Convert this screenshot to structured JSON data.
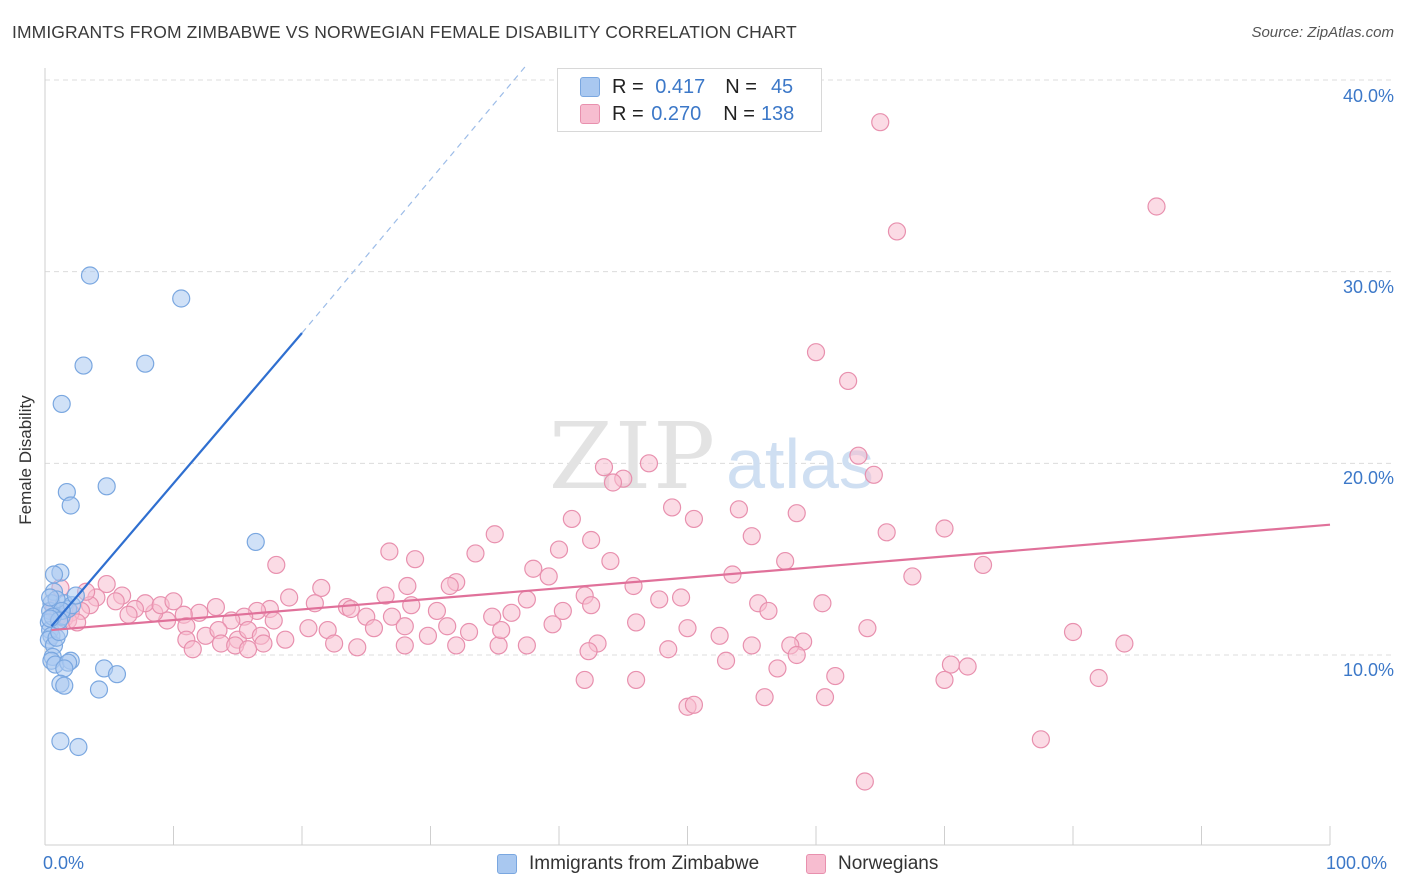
{
  "header": {
    "title": "IMMIGRANTS FROM ZIMBABWE VS NORWEGIAN FEMALE DISABILITY CORRELATION CHART",
    "source": "Source: ZipAtlas.com"
  },
  "watermark": {
    "zip": "ZIP",
    "atlas": "atlas"
  },
  "legend_stats": [
    {
      "r_label": "R =",
      "r_value": "0.417",
      "n_label": "N =",
      "n_value": "45",
      "color": "#a9c8f0",
      "border": "#7aa7e0"
    },
    {
      "r_label": "R =",
      "r_value": "0.270",
      "n_label": "N =",
      "n_value": "138",
      "color": "#f7bdd0",
      "border": "#e890ae"
    }
  ],
  "chart_data": {
    "type": "scatter",
    "title": "IMMIGRANTS FROM ZIMBABWE VS NORWEGIAN FEMALE DISABILITY CORRELATION CHART",
    "xlabel": "",
    "ylabel": "Female Disability",
    "xlim": [
      0,
      100
    ],
    "ylim": [
      0,
      41
    ],
    "x_tick_labels": [
      "0.0%",
      "100.0%"
    ],
    "y_ticks": [
      10,
      20,
      30,
      40
    ],
    "y_tick_labels": [
      "10.0%",
      "20.0%",
      "30.0%",
      "40.0%"
    ],
    "grid": true,
    "legend_position": "bottom",
    "series": [
      {
        "name": "Immigrants from Zimbabwe",
        "color": "#7aa7e0",
        "fill": "#a9c8f0",
        "trend": {
          "x": [
            0.5,
            20.0
          ],
          "y": [
            11.5,
            26.8
          ],
          "dashed_to": [
            37.5,
            40.8
          ]
        },
        "points": [
          [
            3.5,
            29.8
          ],
          [
            10.6,
            28.6
          ],
          [
            3.0,
            25.1
          ],
          [
            7.8,
            25.2
          ],
          [
            1.3,
            23.1
          ],
          [
            1.7,
            18.5
          ],
          [
            2.0,
            17.8
          ],
          [
            4.8,
            18.8
          ],
          [
            16.4,
            15.9
          ],
          [
            1.2,
            14.3
          ],
          [
            0.7,
            14.2
          ],
          [
            0.7,
            13.3
          ],
          [
            0.5,
            12.7
          ],
          [
            0.4,
            12.3
          ],
          [
            0.3,
            11.7
          ],
          [
            0.4,
            11.3
          ],
          [
            0.5,
            11.0
          ],
          [
            0.3,
            10.8
          ],
          [
            0.7,
            10.5
          ],
          [
            0.9,
            10.9
          ],
          [
            1.1,
            11.2
          ],
          [
            0.6,
            9.9
          ],
          [
            0.5,
            9.7
          ],
          [
            0.8,
            9.5
          ],
          [
            1.3,
            12.0
          ],
          [
            1.5,
            12.7
          ],
          [
            1.8,
            12.4
          ],
          [
            2.1,
            12.6
          ],
          [
            2.4,
            13.1
          ],
          [
            0.9,
            12.9
          ],
          [
            1.3,
            12.3
          ],
          [
            0.6,
            12.0
          ],
          [
            1.1,
            11.8
          ],
          [
            0.4,
            13.0
          ],
          [
            2.0,
            9.7
          ],
          [
            1.8,
            9.6
          ],
          [
            1.5,
            9.3
          ],
          [
            4.6,
            9.3
          ],
          [
            5.6,
            9.0
          ],
          [
            1.2,
            8.5
          ],
          [
            1.5,
            8.4
          ],
          [
            4.2,
            8.2
          ],
          [
            1.2,
            5.5
          ],
          [
            2.6,
            5.2
          ],
          [
            0.4,
            11.9
          ]
        ]
      },
      {
        "name": "Norwegians",
        "color": "#e890ae",
        "fill": "#f7bdd0",
        "trend": {
          "x": [
            0.5,
            100.0
          ],
          "y": [
            11.3,
            16.8
          ]
        },
        "points": [
          [
            65.0,
            37.8
          ],
          [
            86.5,
            33.4
          ],
          [
            66.3,
            32.1
          ],
          [
            60.0,
            25.8
          ],
          [
            62.5,
            24.3
          ],
          [
            63.3,
            20.4
          ],
          [
            64.5,
            19.4
          ],
          [
            47.0,
            20.0
          ],
          [
            43.5,
            19.8
          ],
          [
            45.0,
            19.2
          ],
          [
            44.2,
            19.0
          ],
          [
            54.0,
            17.6
          ],
          [
            48.8,
            17.7
          ],
          [
            58.5,
            17.4
          ],
          [
            50.5,
            17.1
          ],
          [
            41.0,
            17.1
          ],
          [
            70.0,
            16.6
          ],
          [
            65.5,
            16.4
          ],
          [
            55.0,
            16.2
          ],
          [
            35.0,
            16.3
          ],
          [
            42.5,
            16.0
          ],
          [
            26.8,
            15.4
          ],
          [
            28.8,
            15.0
          ],
          [
            33.5,
            15.3
          ],
          [
            40.0,
            15.5
          ],
          [
            44.0,
            14.9
          ],
          [
            57.6,
            14.9
          ],
          [
            73.0,
            14.7
          ],
          [
            53.5,
            14.2
          ],
          [
            67.5,
            14.1
          ],
          [
            38.0,
            14.5
          ],
          [
            39.2,
            14.1
          ],
          [
            32.0,
            13.8
          ],
          [
            31.5,
            13.6
          ],
          [
            28.2,
            13.6
          ],
          [
            18.0,
            14.7
          ],
          [
            21.5,
            13.5
          ],
          [
            26.5,
            13.1
          ],
          [
            45.8,
            13.6
          ],
          [
            42.0,
            13.1
          ],
          [
            37.5,
            12.9
          ],
          [
            49.5,
            13.0
          ],
          [
            55.5,
            12.7
          ],
          [
            60.5,
            12.7
          ],
          [
            56.3,
            12.3
          ],
          [
            47.8,
            12.9
          ],
          [
            42.5,
            12.6
          ],
          [
            40.3,
            12.3
          ],
          [
            36.3,
            12.2
          ],
          [
            34.8,
            12.0
          ],
          [
            30.5,
            12.3
          ],
          [
            28.5,
            12.6
          ],
          [
            27.0,
            12.0
          ],
          [
            25.0,
            12.0
          ],
          [
            23.5,
            12.5
          ],
          [
            21.0,
            12.7
          ],
          [
            19.0,
            13.0
          ],
          [
            17.5,
            12.4
          ],
          [
            16.5,
            12.3
          ],
          [
            15.5,
            12.0
          ],
          [
            14.5,
            11.8
          ],
          [
            13.3,
            12.5
          ],
          [
            12.0,
            12.2
          ],
          [
            10.8,
            12.1
          ],
          [
            9.5,
            11.8
          ],
          [
            8.5,
            12.2
          ],
          [
            7.8,
            12.7
          ],
          [
            7.0,
            12.4
          ],
          [
            6.5,
            12.1
          ],
          [
            6.0,
            13.1
          ],
          [
            5.5,
            12.8
          ],
          [
            4.8,
            13.7
          ],
          [
            4.0,
            13.0
          ],
          [
            3.5,
            12.6
          ],
          [
            2.8,
            12.3
          ],
          [
            2.0,
            12.2
          ],
          [
            1.5,
            11.9
          ],
          [
            1.0,
            12.0
          ],
          [
            0.7,
            12.4
          ],
          [
            1.2,
            13.5
          ],
          [
            1.8,
            11.8
          ],
          [
            2.5,
            11.7
          ],
          [
            3.2,
            13.3
          ],
          [
            9.0,
            12.6
          ],
          [
            10.0,
            12.8
          ],
          [
            11.0,
            11.5
          ],
          [
            12.5,
            11.0
          ],
          [
            13.5,
            11.3
          ],
          [
            15.0,
            10.8
          ],
          [
            15.8,
            11.3
          ],
          [
            16.8,
            11.0
          ],
          [
            17.8,
            11.8
          ],
          [
            18.7,
            10.8
          ],
          [
            20.5,
            11.4
          ],
          [
            22.0,
            11.3
          ],
          [
            23.8,
            12.4
          ],
          [
            25.6,
            11.4
          ],
          [
            28.0,
            11.5
          ],
          [
            29.8,
            11.0
          ],
          [
            32.0,
            10.5
          ],
          [
            35.3,
            10.5
          ],
          [
            39.5,
            11.6
          ],
          [
            46.0,
            11.7
          ],
          [
            50.0,
            11.4
          ],
          [
            52.5,
            11.0
          ],
          [
            59.0,
            10.7
          ],
          [
            13.7,
            10.6
          ],
          [
            11.0,
            10.8
          ],
          [
            14.8,
            10.5
          ],
          [
            17.0,
            10.6
          ],
          [
            11.5,
            10.3
          ],
          [
            15.8,
            10.3
          ],
          [
            22.5,
            10.6
          ],
          [
            24.3,
            10.4
          ],
          [
            28.0,
            10.5
          ],
          [
            31.3,
            11.5
          ],
          [
            33.0,
            11.2
          ],
          [
            35.5,
            11.3
          ],
          [
            37.5,
            10.5
          ],
          [
            43.0,
            10.6
          ],
          [
            42.3,
            10.2
          ],
          [
            48.5,
            10.3
          ],
          [
            55.0,
            10.5
          ],
          [
            58.0,
            10.5
          ],
          [
            64.0,
            11.4
          ],
          [
            80.0,
            11.2
          ],
          [
            84.0,
            10.6
          ],
          [
            58.5,
            10.0
          ],
          [
            70.5,
            9.5
          ],
          [
            71.8,
            9.4
          ],
          [
            70.0,
            8.7
          ],
          [
            82.0,
            8.8
          ],
          [
            61.5,
            8.9
          ],
          [
            42.0,
            8.7
          ],
          [
            46.0,
            8.7
          ],
          [
            53.0,
            9.7
          ],
          [
            57.0,
            9.3
          ],
          [
            60.7,
            7.8
          ],
          [
            56.0,
            7.8
          ],
          [
            50.0,
            7.3
          ],
          [
            77.5,
            5.6
          ],
          [
            63.8,
            3.4
          ],
          [
            50.5,
            7.4
          ]
        ]
      }
    ]
  },
  "legend_bottom": [
    {
      "label": "Immigrants from Zimbabwe",
      "color": "#a9c8f0",
      "border": "#7aa7e0"
    },
    {
      "label": "Norwegians",
      "color": "#f7bdd0",
      "border": "#e890ae"
    }
  ]
}
